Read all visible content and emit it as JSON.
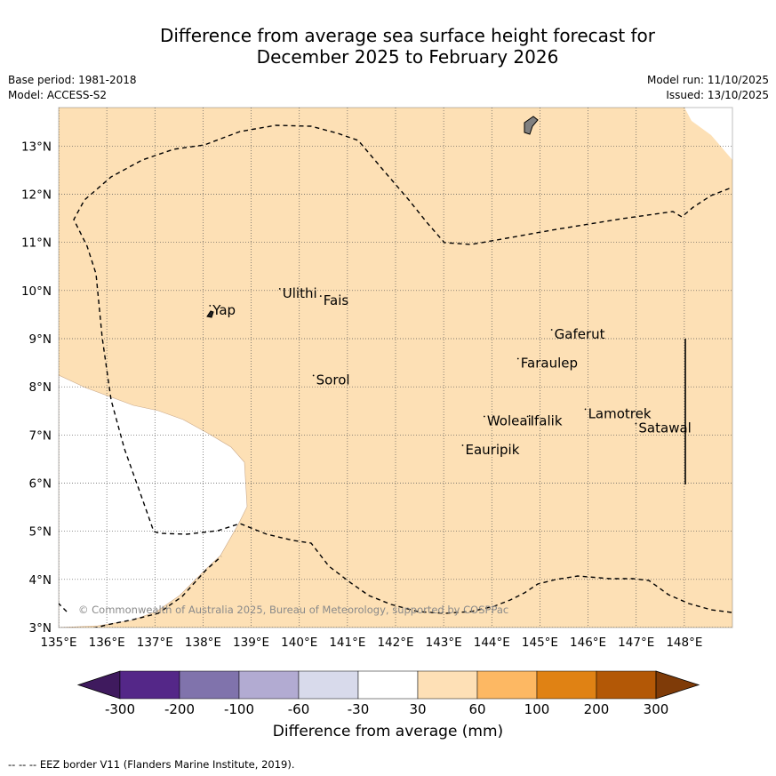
{
  "title": {
    "line1": "Difference from average sea surface height forecast for",
    "line2": "December 2025 to February 2026"
  },
  "meta": {
    "base_period": "Base period: 1981-2018",
    "model": "Model: ACCESS-S2",
    "model_run": "Model run: 11/10/2025",
    "issued": "Issued: 13/10/2025"
  },
  "colors": {
    "land_fill": "#808080",
    "above_30_60": "#fde0b5",
    "no_change": "#ffffff",
    "eez_line": "#000000"
  },
  "map": {
    "lon_range": [
      135,
      149
    ],
    "lat_range": [
      3,
      13.8
    ],
    "lon_ticks": [
      135,
      136,
      137,
      138,
      139,
      140,
      141,
      142,
      143,
      144,
      145,
      146,
      147,
      148
    ],
    "lon_labels": [
      "135°E",
      "136°E",
      "137°E",
      "138°E",
      "139°E",
      "140°E",
      "141°E",
      "142°E",
      "143°E",
      "144°E",
      "145°E",
      "146°E",
      "147°E",
      "148°E"
    ],
    "lat_ticks": [
      3,
      4,
      5,
      6,
      7,
      8,
      9,
      10,
      11,
      12,
      13
    ],
    "lat_labels": [
      "3°N",
      "4°N",
      "5°N",
      "6°N",
      "7°N",
      "8°N",
      "9°N",
      "10°N",
      "11°N",
      "12°N",
      "13°N"
    ],
    "places": [
      {
        "name": "Yap",
        "lon": 138.2,
        "lat": 9.5
      },
      {
        "name": "Ulithi",
        "lon": 139.65,
        "lat": 9.85
      },
      {
        "name": "Fais",
        "lon": 140.5,
        "lat": 9.7
      },
      {
        "name": "Sorol",
        "lon": 140.35,
        "lat": 8.05
      },
      {
        "name": "Gaferut",
        "lon": 145.3,
        "lat": 9.0
      },
      {
        "name": "Faraulep",
        "lon": 144.6,
        "lat": 8.4
      },
      {
        "name": "Woleai",
        "lon": 143.9,
        "lat": 7.2
      },
      {
        "name": "Ifalik",
        "lon": 144.8,
        "lat": 7.2
      },
      {
        "name": "Lamotrek",
        "lon": 146.0,
        "lat": 7.35
      },
      {
        "name": "Satawal",
        "lon": 147.05,
        "lat": 7.05
      },
      {
        "name": "Eauripik",
        "lon": 143.45,
        "lat": 6.6
      }
    ],
    "copyright": "© Commonwealth of Australia 2025, Bureau of Meteorology, supported by COSPPac"
  },
  "colorbar": {
    "label": "Difference from average (mm)",
    "tick_labels": [
      "-300",
      "-200",
      "-100",
      "-60",
      "-30",
      "30",
      "60",
      "100",
      "200",
      "300"
    ],
    "colors": [
      "#3f1a5e",
      "#542788",
      "#8073ac",
      "#b2abd2",
      "#d8daeb",
      "#ffffff",
      "#fee0b6",
      "#fdb863",
      "#e08214",
      "#b35806",
      "#7f3b08"
    ]
  },
  "footer": "--  --  -- EEZ border V11 (Flanders Marine Institute, 2019)."
}
